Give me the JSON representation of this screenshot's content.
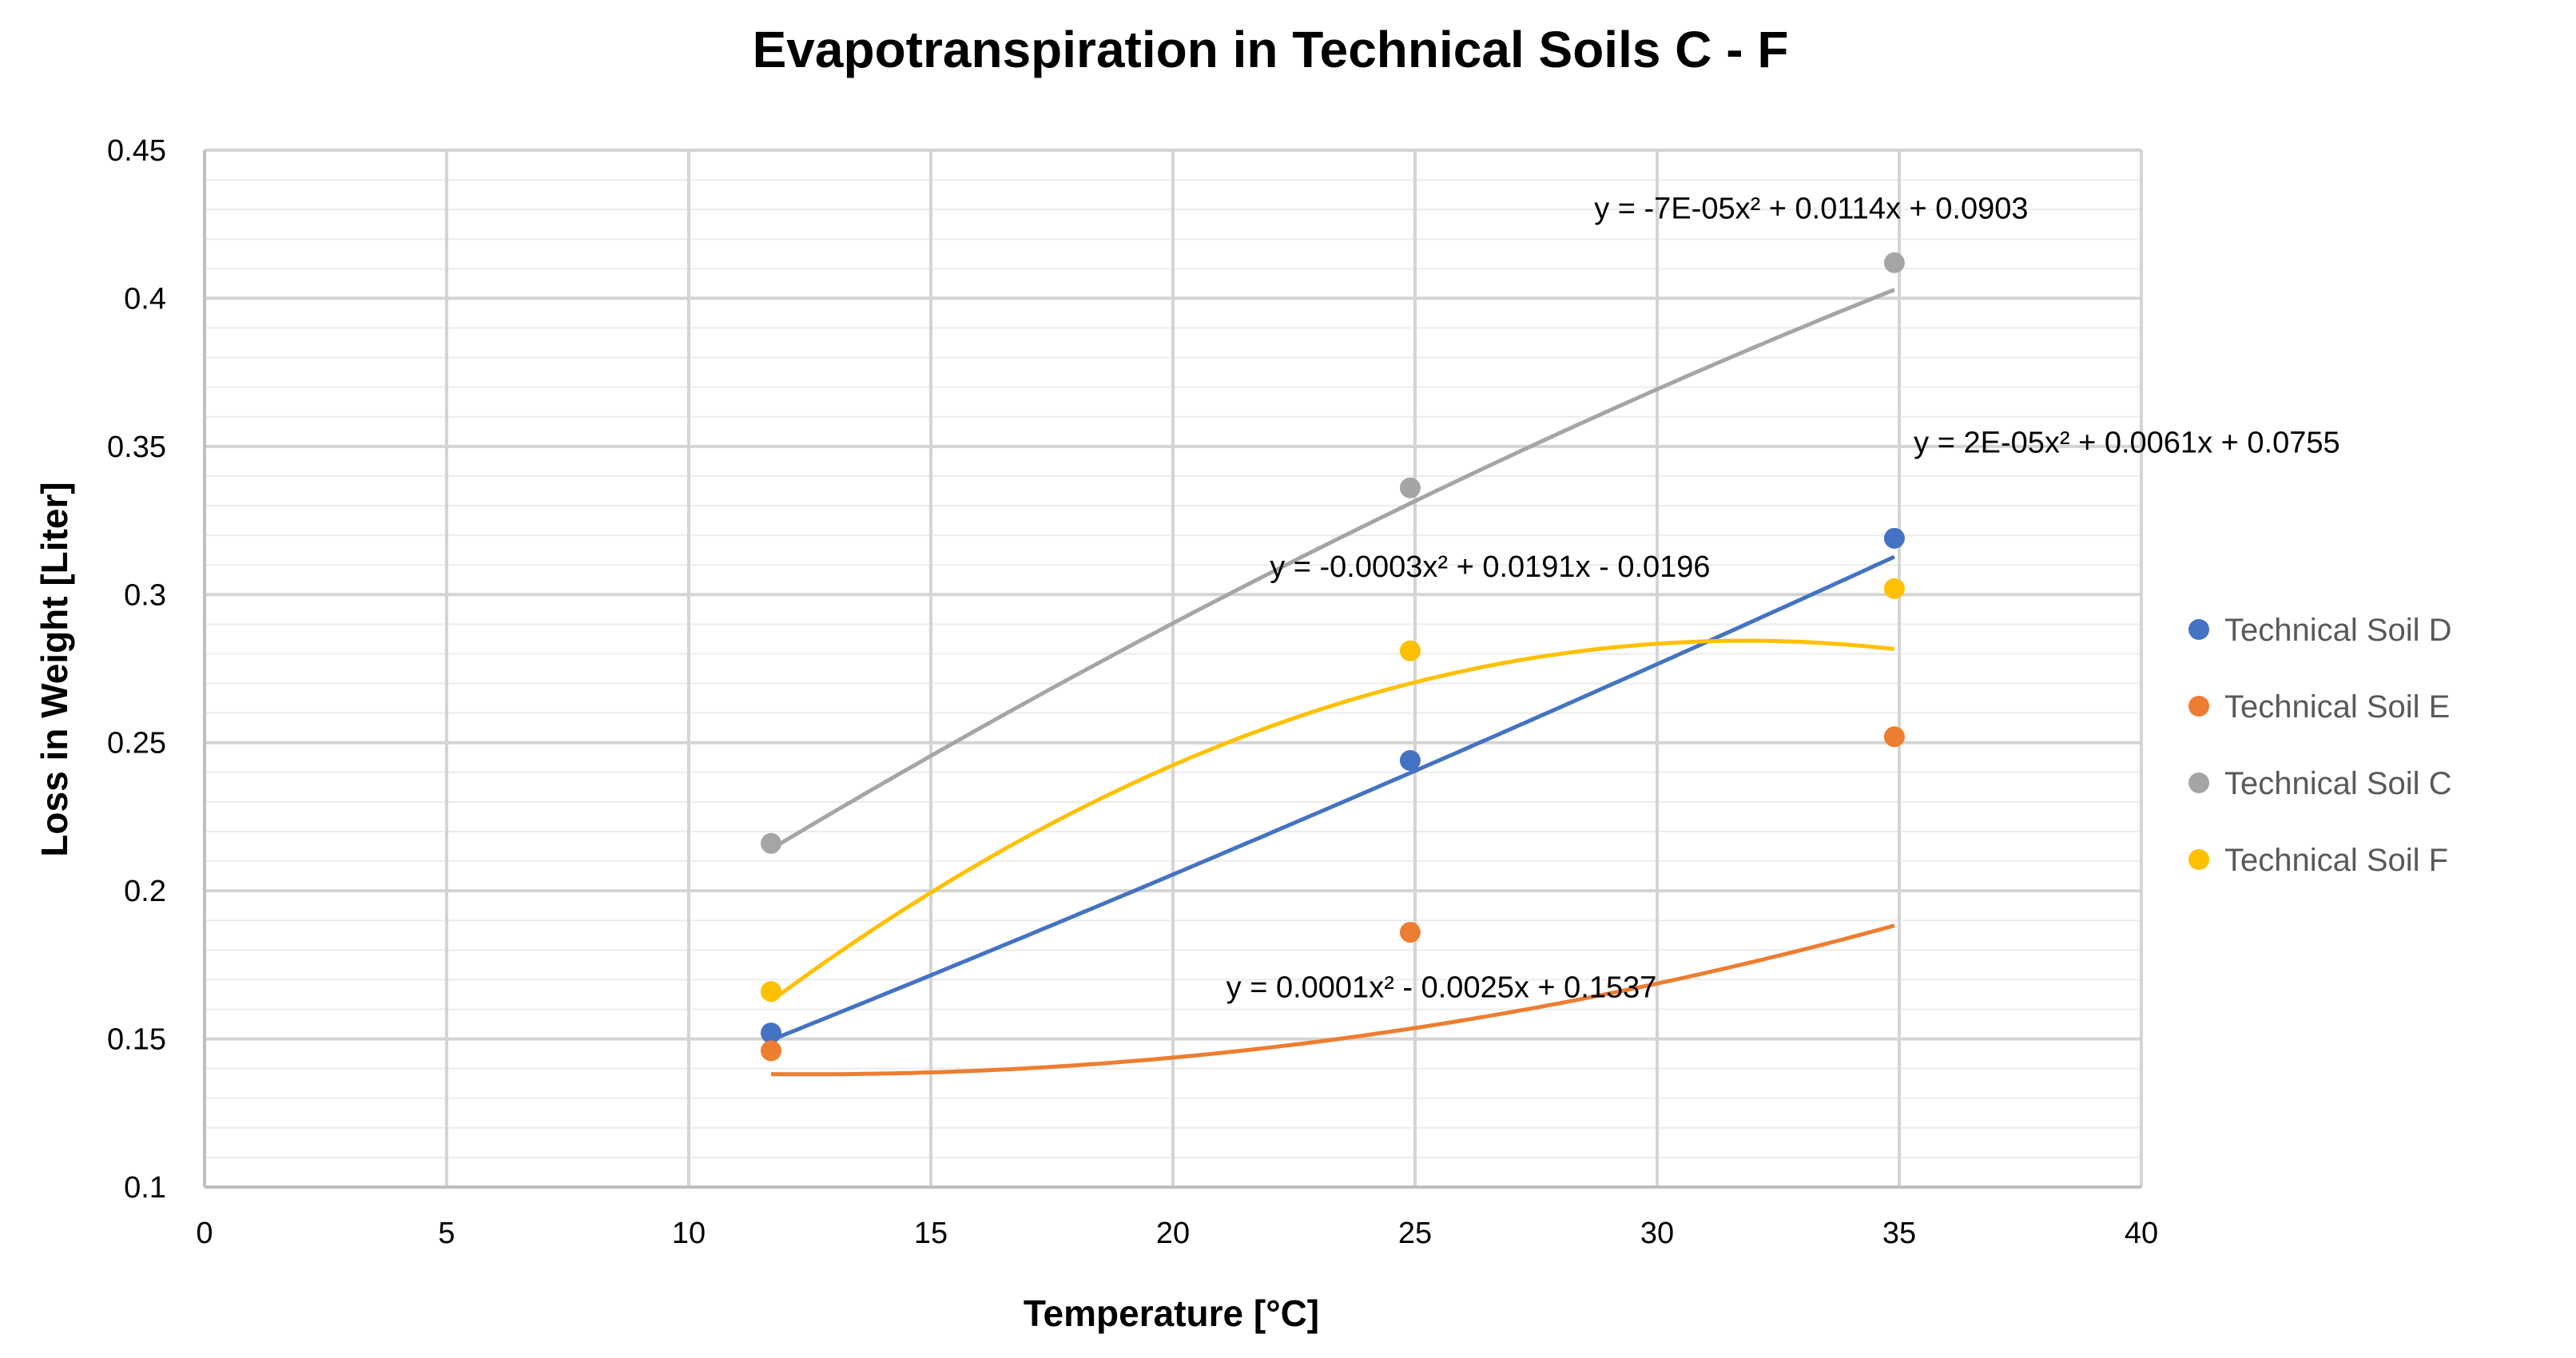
{
  "chart_data": {
    "type": "scatter",
    "title": "Evapotranspiration in Technical Soils C - F",
    "xlabel": "Temperature [°C]",
    "ylabel": "Loss in Weight [Liter]",
    "xlim": [
      0,
      40
    ],
    "ylim": [
      0.1,
      0.45
    ],
    "xticks": [
      "0",
      "5",
      "10",
      "15",
      "20",
      "25",
      "30",
      "35",
      "40"
    ],
    "yticks": [
      "0.1",
      "0.15",
      "0.2",
      "0.25",
      "0.3",
      "0.35",
      "0.4",
      "0.45"
    ],
    "grid": true,
    "legend_position": "right",
    "series": [
      {
        "name": "Technical Soil D",
        "color": "#4472C4",
        "x": [
          11.7,
          24.9,
          34.9
        ],
        "y": [
          0.152,
          0.244,
          0.319
        ],
        "trendline": {
          "type": "poly2",
          "a": 2e-05,
          "b": 0.0061,
          "c": 0.0755
        },
        "equation_text": "y = 2E-05x² + 0.0061x + 0.0755"
      },
      {
        "name": "Technical Soil E",
        "color": "#ED7D31",
        "x": [
          11.7,
          24.9,
          34.9
        ],
        "y": [
          0.146,
          0.186,
          0.252
        ],
        "trendline": {
          "type": "poly2",
          "a": 0.0001,
          "b": -0.0025,
          "c": 0.1537
        },
        "equation_text": "y = 0.0001x² - 0.0025x + 0.1537"
      },
      {
        "name": "Technical Soil C",
        "color": "#A5A5A5",
        "x": [
          11.7,
          24.9,
          34.9
        ],
        "y": [
          0.216,
          0.336,
          0.412
        ],
        "trendline": {
          "type": "poly2",
          "a": -7e-05,
          "b": 0.0114,
          "c": 0.0903
        },
        "equation_text": "y = -7E-05x² + 0.0114x + 0.0903"
      },
      {
        "name": "Technical Soil F",
        "color": "#FFC000",
        "x": [
          11.7,
          24.9,
          34.9
        ],
        "y": [
          0.166,
          0.281,
          0.302
        ],
        "trendline": {
          "type": "poly2",
          "a": -0.0003,
          "b": 0.0191,
          "c": -0.0196
        },
        "equation_text": "y = -0.0003x² + 0.0191x - 0.0196"
      }
    ]
  }
}
